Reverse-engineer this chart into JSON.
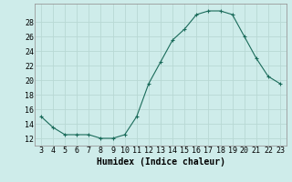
{
  "x": [
    3,
    4,
    5,
    6,
    7,
    8,
    9,
    10,
    11,
    12,
    13,
    14,
    15,
    16,
    17,
    18,
    19,
    20,
    21,
    22,
    23
  ],
  "y": [
    15,
    13.5,
    12.5,
    12.5,
    12.5,
    12,
    12,
    12.5,
    15,
    19.5,
    22.5,
    25.5,
    27,
    29,
    29.5,
    29.5,
    29,
    26,
    23,
    20.5,
    19.5
  ],
  "line_color": "#1a6b5a",
  "marker": "+",
  "marker_size": 3,
  "marker_color": "#1a6b5a",
  "bg_color": "#ceecea",
  "grid_color": "#b8d8d4",
  "xlabel": "Humidex (Indice chaleur)",
  "xlabel_fontsize": 7,
  "ylabel_ticks": [
    12,
    14,
    16,
    18,
    20,
    22,
    24,
    26,
    28
  ],
  "xlim": [
    2.5,
    23.5
  ],
  "ylim": [
    11,
    30.5
  ],
  "xticks": [
    3,
    4,
    5,
    6,
    7,
    8,
    9,
    10,
    11,
    12,
    13,
    14,
    15,
    16,
    17,
    18,
    19,
    20,
    21,
    22,
    23
  ],
  "tick_fontsize": 6
}
